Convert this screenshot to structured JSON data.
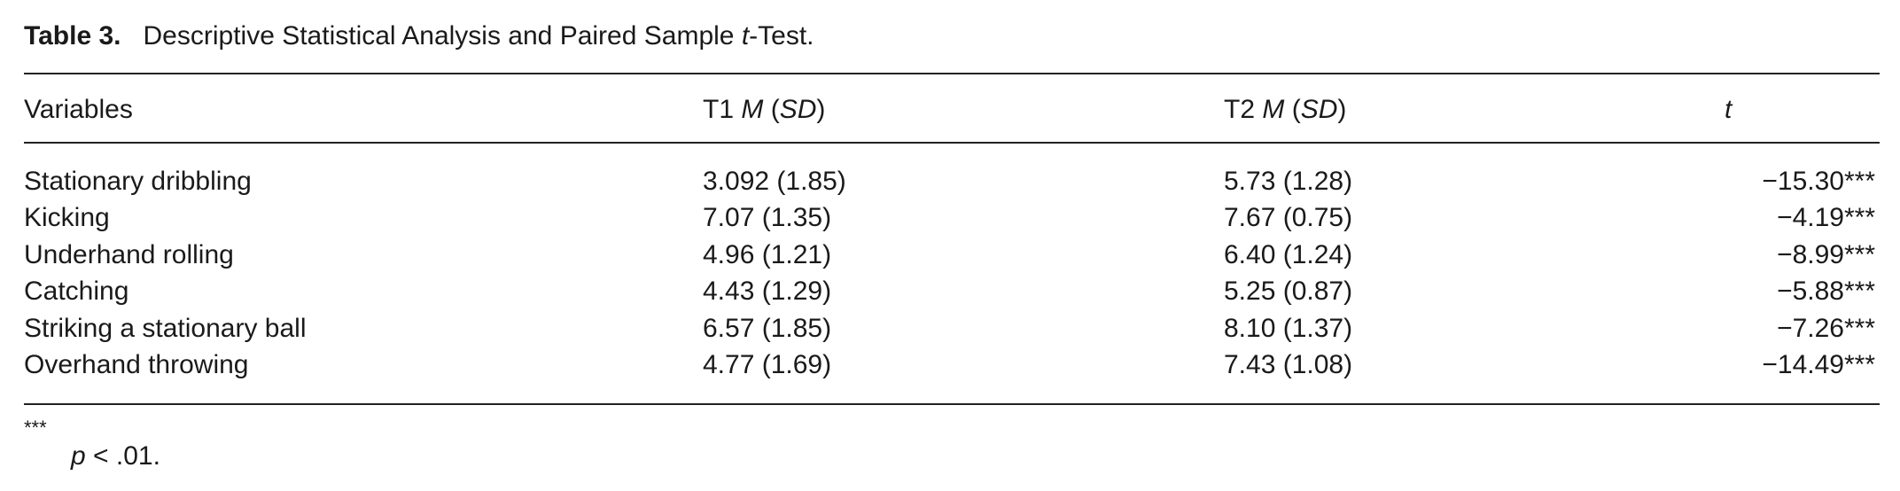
{
  "title": {
    "label": "Table 3.",
    "text": [
      "Descriptive Statistical Analysis and Paired Sample ",
      "t",
      "-Test."
    ]
  },
  "header": {
    "variables": "Variables",
    "t1": [
      "T1 ",
      "M",
      " (",
      "SD",
      ")"
    ],
    "t2": [
      "T2 ",
      "M",
      " (",
      "SD",
      ")"
    ],
    "t": "t"
  },
  "table": {
    "rows": [
      [
        "Stationary dribbling",
        "3.092 (1.85)",
        "5.73 (1.28)",
        "−15.30***"
      ],
      [
        "Kicking",
        "7.07 (1.35)",
        "7.67 (0.75)",
        "−4.19***"
      ],
      [
        "Underhand rolling",
        "4.96 (1.21)",
        "6.40 (1.24)",
        "−8.99***"
      ],
      [
        "Catching",
        "4.43 (1.29)",
        "5.25 (0.87)",
        "−5.88***"
      ],
      [
        "Striking a stationary ball",
        "6.57 (1.85)",
        "8.10 (1.37)",
        "−7.26***"
      ],
      [
        "Overhand throwing",
        "4.77 (1.69)",
        "7.43 (1.08)",
        "−14.49***"
      ]
    ]
  },
  "footnote": {
    "mark": "***",
    "text": [
      "p",
      " < .01."
    ]
  }
}
